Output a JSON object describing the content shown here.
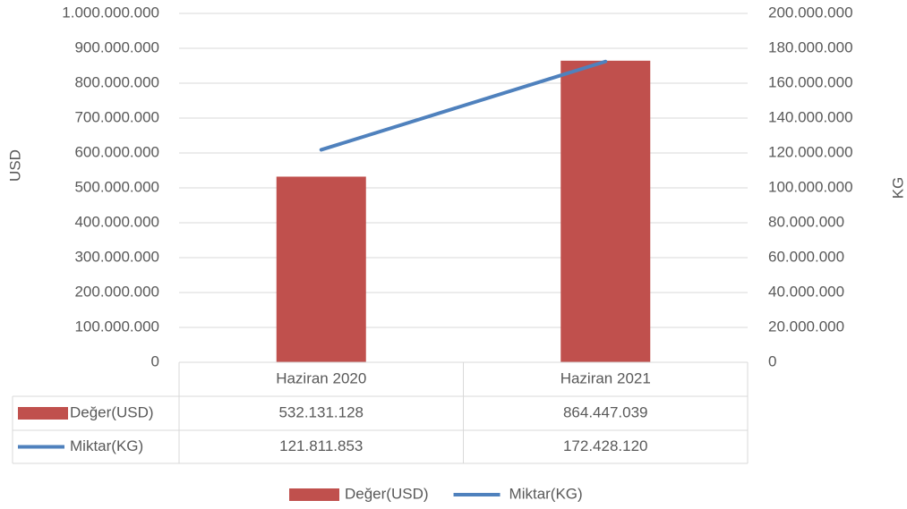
{
  "chart_data": {
    "type": "bar",
    "categories": [
      "Haziran 2020",
      "Haziran 2021"
    ],
    "series": [
      {
        "name": "Değer(USD)",
        "color": "#c0504d",
        "values": [
          532131128,
          864447039
        ],
        "value_labels": [
          "532.131.128",
          "864.447.039"
        ]
      },
      {
        "name": "Miktar(KG)",
        "color": "#4f81bd",
        "type": "line",
        "axis": "y2",
        "values": [
          121811853,
          172428120
        ],
        "value_labels": [
          "121.811.853",
          "172.428.120"
        ]
      }
    ],
    "y_label": "USD",
    "y2_label": "KG",
    "ylim": [
      0,
      1000000000
    ],
    "yticks": [
      0,
      {
        "value": 100000000,
        "label": "100.000.000"
      },
      {
        "value": 200000000,
        "label": "200.000.000"
      },
      {
        "value": 300000000,
        "label": "300.000.000"
      },
      {
        "value": 400000000,
        "label": "400.000.000"
      },
      {
        "value": 500000000,
        "label": "500.000.000"
      },
      {
        "value": 600000000,
        "label": "600.000.000"
      },
      {
        "value": 700000000,
        "label": "700.000.000"
      },
      {
        "value": 800000000,
        "label": "800.000.000"
      },
      {
        "value": 900000000,
        "label": "900.000.000"
      },
      {
        "value": 1000000000,
        "label": "1.000.000.000"
      }
    ],
    "y2lim": [
      0,
      200000000
    ],
    "y2ticks": [
      0,
      {
        "value": 20000000,
        "label": "20.000.000"
      },
      {
        "value": 40000000,
        "label": "40.000.000"
      },
      {
        "value": 60000000,
        "label": "60.000.000"
      },
      {
        "value": 80000000,
        "label": "80.000.000"
      },
      {
        "value": 100000000,
        "label": "100.000.000"
      },
      {
        "value": 120000000,
        "label": "120.000.000"
      },
      {
        "value": 140000000,
        "label": "140.000.000"
      },
      {
        "value": 160000000,
        "label": "160.000.000"
      },
      {
        "value": 180000000,
        "label": "180.000.000"
      },
      {
        "value": 200000000,
        "label": "200.000.000"
      }
    ],
    "grid": true,
    "data_table": true,
    "legend": "bottom"
  }
}
